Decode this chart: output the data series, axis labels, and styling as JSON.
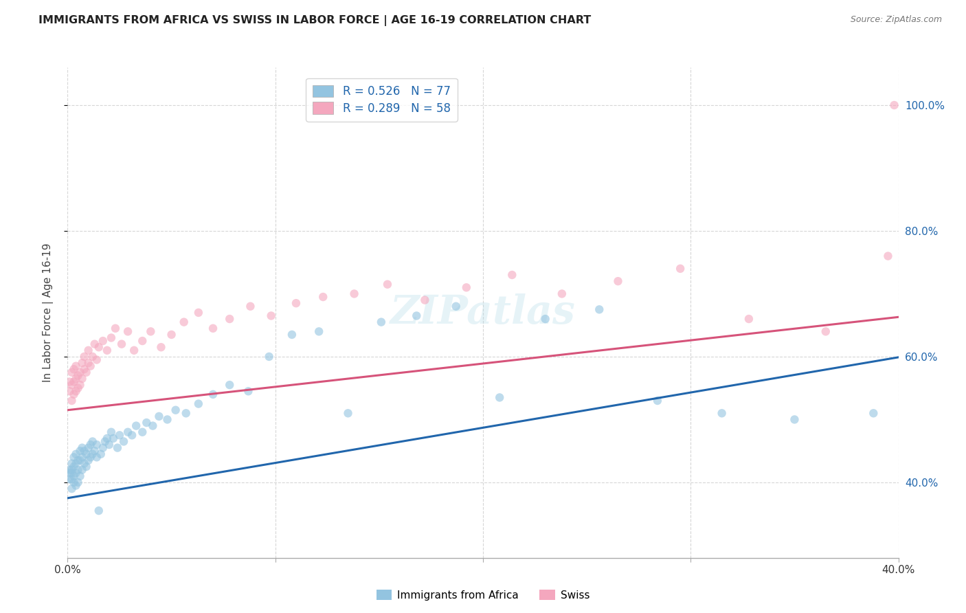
{
  "title": "IMMIGRANTS FROM AFRICA VS SWISS IN LABOR FORCE | AGE 16-19 CORRELATION CHART",
  "source": "Source: ZipAtlas.com",
  "ylabel": "In Labor Force | Age 16-19",
  "xmin": 0.0,
  "xmax": 0.4,
  "ymin": 0.28,
  "ymax": 1.06,
  "yticks": [
    0.4,
    0.6,
    0.8,
    1.0
  ],
  "ytick_labels": [
    "40.0%",
    "60.0%",
    "80.0%",
    "100.0%"
  ],
  "xticks": [
    0.0,
    0.1,
    0.2,
    0.3,
    0.4
  ],
  "xtick_labels": [
    "0.0%",
    "",
    "",
    "",
    "40.0%"
  ],
  "blue_color": "#93c4e0",
  "pink_color": "#f4a7be",
  "blue_line_color": "#2166ac",
  "pink_line_color": "#d6537a",
  "blue_R": 0.526,
  "blue_N": 77,
  "pink_R": 0.289,
  "pink_N": 58,
  "legend_label_blue": "Immigrants from Africa",
  "legend_label_pink": "Swiss",
  "watermark": "ZIPatlas",
  "background_color": "#ffffff",
  "grid_color": "#cccccc",
  "title_color": "#222222",
  "right_ytick_color": "#2166ac",
  "marker_size": 80,
  "marker_alpha": 0.6,
  "blue_line_intercept": 0.375,
  "blue_line_slope": 0.56,
  "pink_line_intercept": 0.515,
  "pink_line_slope": 0.37,
  "blue_scatter_x": [
    0.001,
    0.001,
    0.001,
    0.002,
    0.002,
    0.002,
    0.002,
    0.002,
    0.003,
    0.003,
    0.003,
    0.003,
    0.004,
    0.004,
    0.004,
    0.004,
    0.005,
    0.005,
    0.005,
    0.006,
    0.006,
    0.006,
    0.007,
    0.007,
    0.007,
    0.008,
    0.008,
    0.009,
    0.009,
    0.01,
    0.01,
    0.011,
    0.011,
    0.012,
    0.012,
    0.013,
    0.014,
    0.014,
    0.015,
    0.016,
    0.017,
    0.018,
    0.019,
    0.02,
    0.021,
    0.022,
    0.024,
    0.025,
    0.027,
    0.029,
    0.031,
    0.033,
    0.036,
    0.038,
    0.041,
    0.044,
    0.048,
    0.052,
    0.057,
    0.063,
    0.07,
    0.078,
    0.087,
    0.097,
    0.108,
    0.121,
    0.135,
    0.151,
    0.168,
    0.187,
    0.208,
    0.23,
    0.256,
    0.284,
    0.315,
    0.35,
    0.388
  ],
  "blue_scatter_y": [
    0.405,
    0.42,
    0.415,
    0.39,
    0.42,
    0.405,
    0.43,
    0.415,
    0.4,
    0.41,
    0.425,
    0.44,
    0.395,
    0.415,
    0.43,
    0.445,
    0.4,
    0.42,
    0.435,
    0.41,
    0.435,
    0.45,
    0.42,
    0.44,
    0.455,
    0.43,
    0.45,
    0.425,
    0.445,
    0.435,
    0.455,
    0.44,
    0.46,
    0.445,
    0.465,
    0.45,
    0.44,
    0.46,
    0.355,
    0.445,
    0.455,
    0.465,
    0.47,
    0.46,
    0.48,
    0.47,
    0.455,
    0.475,
    0.465,
    0.48,
    0.475,
    0.49,
    0.48,
    0.495,
    0.49,
    0.505,
    0.5,
    0.515,
    0.51,
    0.525,
    0.54,
    0.555,
    0.545,
    0.6,
    0.635,
    0.64,
    0.51,
    0.655,
    0.665,
    0.68,
    0.535,
    0.66,
    0.675,
    0.53,
    0.51,
    0.5,
    0.51
  ],
  "pink_scatter_x": [
    0.001,
    0.001,
    0.002,
    0.002,
    0.002,
    0.003,
    0.003,
    0.003,
    0.004,
    0.004,
    0.004,
    0.005,
    0.005,
    0.006,
    0.006,
    0.007,
    0.007,
    0.008,
    0.008,
    0.009,
    0.01,
    0.01,
    0.011,
    0.012,
    0.013,
    0.014,
    0.015,
    0.017,
    0.019,
    0.021,
    0.023,
    0.026,
    0.029,
    0.032,
    0.036,
    0.04,
    0.045,
    0.05,
    0.056,
    0.063,
    0.07,
    0.078,
    0.088,
    0.098,
    0.11,
    0.123,
    0.138,
    0.154,
    0.172,
    0.192,
    0.214,
    0.238,
    0.265,
    0.295,
    0.328,
    0.365,
    0.395,
    0.398
  ],
  "pink_scatter_y": [
    0.545,
    0.56,
    0.53,
    0.555,
    0.575,
    0.54,
    0.56,
    0.58,
    0.545,
    0.565,
    0.585,
    0.55,
    0.57,
    0.555,
    0.575,
    0.59,
    0.565,
    0.58,
    0.6,
    0.575,
    0.59,
    0.61,
    0.585,
    0.6,
    0.62,
    0.595,
    0.615,
    0.625,
    0.61,
    0.63,
    0.645,
    0.62,
    0.64,
    0.61,
    0.625,
    0.64,
    0.615,
    0.635,
    0.655,
    0.67,
    0.645,
    0.66,
    0.68,
    0.665,
    0.685,
    0.695,
    0.7,
    0.715,
    0.69,
    0.71,
    0.73,
    0.7,
    0.72,
    0.74,
    0.66,
    0.64,
    0.76,
    1.0
  ]
}
